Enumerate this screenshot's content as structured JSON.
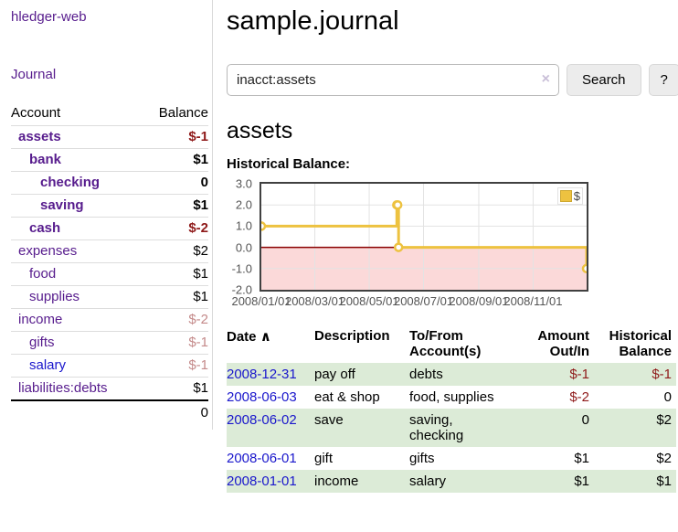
{
  "app": {
    "brand": "hledger-web",
    "nav_journal": "Journal"
  },
  "colors": {
    "purple": "#571c8d",
    "blue": "#1a17cc",
    "red_strong": "#8f1a1a",
    "red_muted": "#c48a8a",
    "row_green": "#dcebd7",
    "row_line": "#dddddd",
    "border_gray": "#d9d9d9",
    "chart_yellow": "#edc240",
    "axis_text": "#545454",
    "grid_line": "#e3e3e3",
    "plot_border": "#404040",
    "btn_bg": "#ececec",
    "btn_border": "#d8d8d8",
    "input_border": "#b9b9b9",
    "clear_x": "#c9bfd8"
  },
  "sidebar": {
    "accounts_header": {
      "account": "Account",
      "balance": "Balance"
    },
    "accounts": [
      {
        "name": "assets",
        "balance": "$-1",
        "depth": 1,
        "bold": true,
        "neg": "strong"
      },
      {
        "name": "bank",
        "balance": "$1",
        "depth": 2,
        "bold": true
      },
      {
        "name": "checking",
        "balance": "0",
        "depth": 3,
        "bold": true
      },
      {
        "name": "saving",
        "balance": "$1",
        "depth": 3,
        "bold": true
      },
      {
        "name": "cash",
        "balance": "$-2",
        "depth": 2,
        "bold": true,
        "neg": "strong"
      },
      {
        "name": "expenses",
        "balance": "$2",
        "depth": 1
      },
      {
        "name": "food",
        "balance": "$1",
        "depth": 2
      },
      {
        "name": "supplies",
        "balance": "$1",
        "depth": 2
      },
      {
        "name": "income",
        "balance": "$-2",
        "depth": 1,
        "neg": "muted"
      },
      {
        "name": "gifts",
        "balance": "$-1",
        "depth": 2,
        "neg": "muted"
      },
      {
        "name": "salary",
        "balance": "$-1",
        "depth": 2,
        "neg": "muted",
        "link": "unvisited"
      },
      {
        "name": "liabilities:debts",
        "balance": "$1",
        "depth": 1
      }
    ],
    "total": "0"
  },
  "header": {
    "title": "sample.journal"
  },
  "search": {
    "value": "inacct:assets",
    "clear_icon": "×",
    "button": "Search",
    "help": "?"
  },
  "account_page": {
    "title": "assets",
    "chart_label": "Historical Balance:"
  },
  "chart_data": {
    "type": "line",
    "title": "Historical Balance:",
    "step": true,
    "series": [
      {
        "name": "$",
        "color": "#edc240",
        "points": [
          [
            "2008-01-01",
            1
          ],
          [
            "2008-06-01",
            2
          ],
          [
            "2008-06-02",
            2
          ],
          [
            "2008-06-03",
            0
          ],
          [
            "2008-12-31",
            -1
          ]
        ]
      }
    ],
    "x_range": [
      "2008-01-01",
      "2008-12-31"
    ],
    "x_ticks": [
      {
        "date": "2008-01-01",
        "label": "2008/01/01"
      },
      {
        "date": "2008-03-01",
        "label": "2008/03/01"
      },
      {
        "date": "2008-05-01",
        "label": "2008/05/01"
      },
      {
        "date": "2008-07-01",
        "label": "2008/07/01"
      },
      {
        "date": "2008-09-01",
        "label": "2008/09/01"
      },
      {
        "date": "2008-11-01",
        "label": "2008/11/01"
      }
    ],
    "y_ticks": [
      "3.0",
      "2.0",
      "1.0",
      "0.0",
      "-1.0",
      "-2.0"
    ],
    "ylim": [
      -2,
      3
    ],
    "grid": true,
    "legend_position": "top-right",
    "negative_region_color": "#fbd9d9",
    "zero_line_color": "#8b0000"
  },
  "register": {
    "headers": {
      "date": "Date",
      "sort_icon": "∧",
      "description": "Description",
      "accounts": "To/From Account(s)",
      "amount": "Amount Out/In",
      "balance": "Historical Balance"
    },
    "rows": [
      {
        "date": "2008-12-31",
        "description": "pay off",
        "accounts": "debts",
        "amount": "$-1",
        "balance": "$-1"
      },
      {
        "date": "2008-06-03",
        "description": "eat & shop",
        "accounts": "food, supplies",
        "amount": "$-2",
        "balance": "0"
      },
      {
        "date": "2008-06-02",
        "description": "save",
        "accounts": "saving, checking",
        "amount": "0",
        "balance": "$2"
      },
      {
        "date": "2008-06-01",
        "description": "gift",
        "accounts": "gifts",
        "amount": "$1",
        "balance": "$2"
      },
      {
        "date": "2008-01-01",
        "description": "income",
        "accounts": "salary",
        "amount": "$1",
        "balance": "$1"
      }
    ]
  }
}
